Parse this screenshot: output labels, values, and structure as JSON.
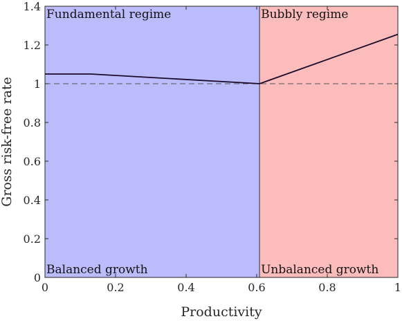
{
  "chart_data": {
    "type": "line",
    "xlabel": "Productivity",
    "ylabel": "Gross risk-free rate",
    "xlim": [
      0,
      1
    ],
    "ylim": [
      0,
      1.4
    ],
    "x_ticks": [
      0,
      0.2,
      0.4,
      0.6,
      0.8,
      1
    ],
    "x_tick_labels": [
      "0",
      "0.2",
      "0.4",
      "0.6",
      "0.8",
      "1"
    ],
    "y_ticks": [
      0,
      0.2,
      0.4,
      0.6,
      0.8,
      1,
      1.2,
      1.4
    ],
    "y_tick_labels": [
      "0",
      "0.2",
      "0.4",
      "0.6",
      "0.8",
      "1",
      "1.2",
      "1.4"
    ],
    "threshold_x": 0.608,
    "reference_y": 1,
    "regions": [
      {
        "x_from": 0,
        "x_to": 0.608,
        "color": "#bcbcfd",
        "top_label": "Fundamental regime",
        "bottom_label": "Balanced growth"
      },
      {
        "x_from": 0.608,
        "x_to": 1,
        "color": "#fdbcbc",
        "top_label": "Bubbly regime",
        "bottom_label": "Unbalanced growth"
      }
    ],
    "series": [
      {
        "color": "#1a0a2a",
        "x": [
          0,
          0.13,
          0.608,
          1
        ],
        "y": [
          1.05,
          1.05,
          1.0,
          1.255
        ]
      }
    ],
    "grid": false
  }
}
